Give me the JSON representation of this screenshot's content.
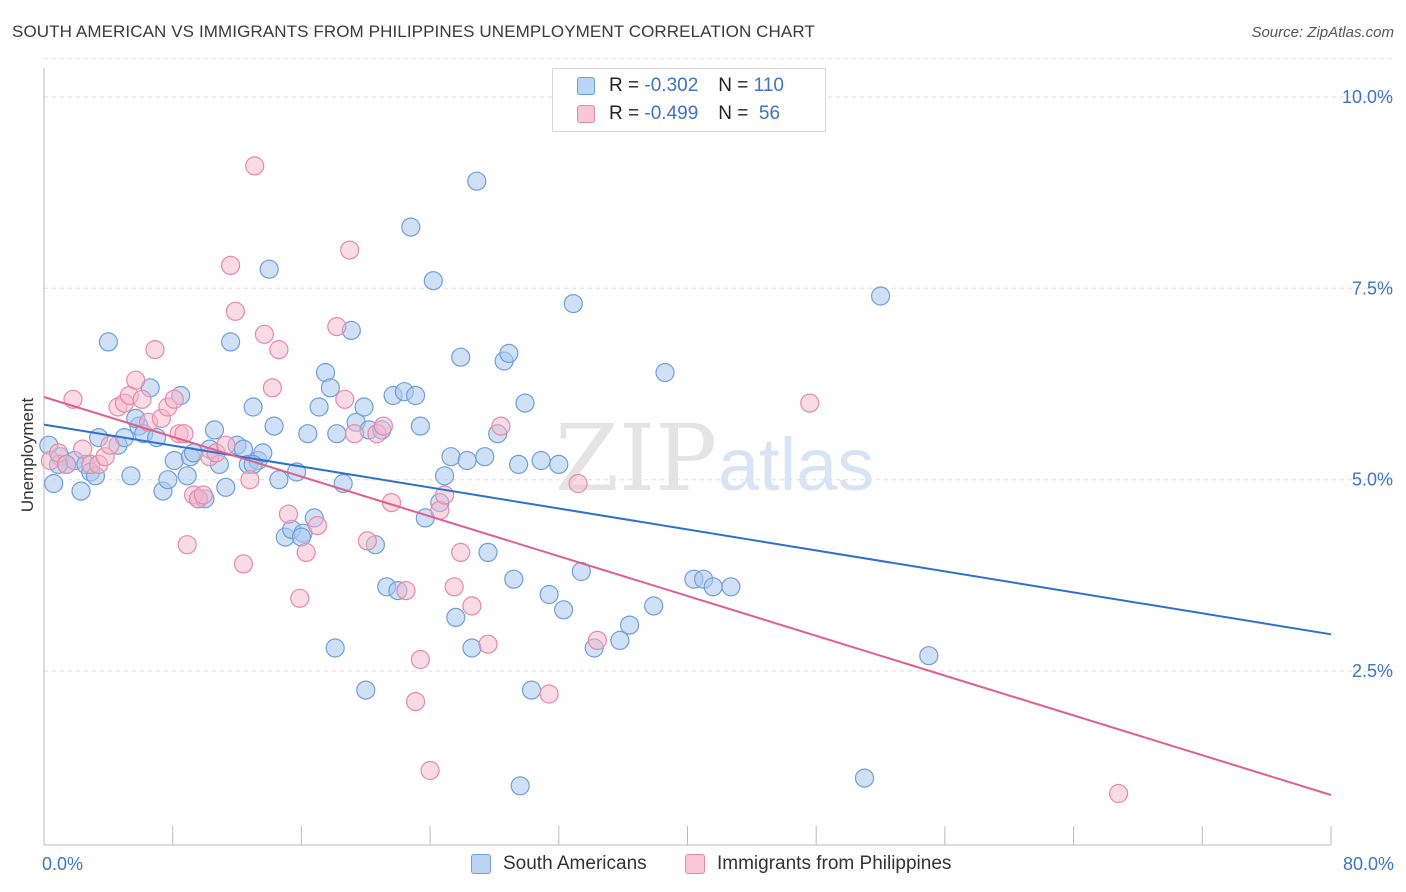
{
  "header": {
    "title": "SOUTH AMERICAN VS IMMIGRANTS FROM PHILIPPINES UNEMPLOYMENT CORRELATION CHART",
    "source": "Source: ZipAtlas.com"
  },
  "watermark": {
    "zip": "ZIP",
    "atlas": "atlas"
  },
  "legend": {
    "rows": [
      {
        "r_label": "R =",
        "r_value": "-0.302",
        "n_label": "N =",
        "n_value": "110"
      },
      {
        "r_label": "R =",
        "r_value": "-0.499",
        "n_label": "N =",
        "n_value": " 56"
      }
    ]
  },
  "colors": {
    "blue_fill": "#a9c8f0",
    "blue_stroke": "#6f9fd8",
    "blue_line": "#2f6fcf",
    "pink_fill": "#f5b6c9",
    "pink_stroke": "#e58aa8",
    "pink_line": "#e0608a",
    "tick_label": "#3d74c4",
    "grid": "#dddddd"
  },
  "chart_data": {
    "type": "scatter",
    "title": "SOUTH AMERICAN VS IMMIGRANTS FROM PHILIPPINES UNEMPLOYMENT CORRELATION CHART",
    "xlabel": "",
    "ylabel": "Unemployment",
    "xlim": [
      0,
      80
    ],
    "ylim": [
      0,
      10.5
    ],
    "x_tick_labels": [
      "0.0%",
      "80.0%"
    ],
    "y_ticks": [
      2.5,
      5.0,
      7.5,
      10.0
    ],
    "y_tick_labels": [
      "2.5%",
      "5.0%",
      "7.5%",
      "10.0%"
    ],
    "grid": "horizontal dashed",
    "legend_position": "top-center",
    "series": [
      {
        "name": "South Americans",
        "color": "#a9c8f0",
        "trend": {
          "x": [
            0,
            80
          ],
          "y": [
            5.72,
            2.98
          ]
        },
        "points": [
          [
            0.3,
            5.45
          ],
          [
            0.6,
            4.95
          ],
          [
            1.0,
            5.3
          ],
          [
            1.4,
            5.2
          ],
          [
            1.9,
            5.25
          ],
          [
            2.3,
            4.85
          ],
          [
            2.6,
            5.2
          ],
          [
            2.9,
            5.1
          ],
          [
            3.2,
            5.05
          ],
          [
            3.4,
            5.55
          ],
          [
            4.0,
            6.8
          ],
          [
            4.6,
            5.45
          ],
          [
            5.0,
            5.55
          ],
          [
            5.4,
            5.05
          ],
          [
            5.9,
            5.7
          ],
          [
            6.2,
            5.6
          ],
          [
            6.6,
            6.2
          ],
          [
            7.0,
            5.55
          ],
          [
            7.4,
            4.85
          ],
          [
            7.7,
            5.0
          ],
          [
            8.1,
            5.25
          ],
          [
            8.5,
            6.1
          ],
          [
            8.9,
            5.05
          ],
          [
            9.1,
            5.3
          ],
          [
            9.6,
            4.75
          ],
          [
            10.0,
            4.75
          ],
          [
            10.3,
            5.4
          ],
          [
            10.6,
            5.65
          ],
          [
            10.9,
            5.2
          ],
          [
            11.3,
            4.9
          ],
          [
            11.6,
            6.8
          ],
          [
            12.0,
            5.45
          ],
          [
            12.4,
            5.4
          ],
          [
            12.7,
            5.2
          ],
          [
            13.0,
            5.95
          ],
          [
            13.3,
            5.25
          ],
          [
            13.6,
            5.35
          ],
          [
            14.0,
            7.75
          ],
          [
            14.3,
            5.7
          ],
          [
            14.6,
            5.0
          ],
          [
            15.0,
            4.25
          ],
          [
            15.4,
            4.35
          ],
          [
            15.7,
            5.1
          ],
          [
            16.1,
            4.3
          ],
          [
            16.4,
            5.6
          ],
          [
            16.8,
            4.5
          ],
          [
            17.1,
            5.95
          ],
          [
            17.5,
            6.4
          ],
          [
            17.8,
            6.2
          ],
          [
            18.2,
            5.6
          ],
          [
            18.6,
            4.95
          ],
          [
            19.1,
            6.95
          ],
          [
            19.4,
            5.75
          ],
          [
            19.9,
            5.95
          ],
          [
            20.2,
            5.65
          ],
          [
            20.6,
            4.15
          ],
          [
            21.0,
            5.65
          ],
          [
            21.3,
            3.6
          ],
          [
            21.7,
            6.1
          ],
          [
            22.0,
            3.55
          ],
          [
            22.4,
            6.15
          ],
          [
            22.8,
            8.3
          ],
          [
            23.1,
            6.1
          ],
          [
            23.4,
            5.7
          ],
          [
            23.7,
            4.5
          ],
          [
            24.2,
            7.6
          ],
          [
            24.6,
            4.7
          ],
          [
            24.9,
            5.05
          ],
          [
            25.3,
            5.3
          ],
          [
            25.6,
            3.2
          ],
          [
            25.9,
            6.6
          ],
          [
            26.3,
            5.25
          ],
          [
            26.6,
            2.8
          ],
          [
            26.9,
            8.9
          ],
          [
            27.4,
            5.3
          ],
          [
            27.6,
            4.05
          ],
          [
            28.2,
            5.6
          ],
          [
            28.6,
            6.55
          ],
          [
            28.9,
            6.65
          ],
          [
            29.2,
            3.7
          ],
          [
            29.5,
            5.2
          ],
          [
            29.9,
            6.0
          ],
          [
            30.3,
            2.25
          ],
          [
            30.9,
            5.25
          ],
          [
            31.4,
            3.5
          ],
          [
            32.0,
            5.2
          ],
          [
            32.3,
            3.3
          ],
          [
            32.9,
            7.3
          ],
          [
            33.4,
            3.8
          ],
          [
            34.2,
            2.8
          ],
          [
            35.8,
            2.9
          ],
          [
            36.4,
            3.1
          ],
          [
            37.9,
            3.35
          ],
          [
            38.6,
            6.4
          ],
          [
            40.4,
            3.7
          ],
          [
            41.0,
            3.7
          ],
          [
            41.6,
            3.6
          ],
          [
            42.7,
            3.6
          ],
          [
            55.0,
            2.7
          ],
          [
            52.0,
            7.4
          ],
          [
            51.0,
            1.1
          ],
          [
            29.6,
            1.0
          ],
          [
            18.1,
            2.8
          ],
          [
            20.0,
            2.25
          ],
          [
            13.0,
            5.2
          ],
          [
            9.3,
            5.35
          ],
          [
            5.7,
            5.8
          ],
          [
            0.9,
            5.2
          ],
          [
            16.0,
            4.25
          ]
        ]
      },
      {
        "name": "Immigrants from Philippines",
        "color": "#f5b6c9",
        "trend": {
          "x": [
            0,
            80
          ],
          "y": [
            6.08,
            0.88
          ]
        },
        "points": [
          [
            0.4,
            5.25
          ],
          [
            0.9,
            5.35
          ],
          [
            1.4,
            5.2
          ],
          [
            1.8,
            6.05
          ],
          [
            2.4,
            5.4
          ],
          [
            2.9,
            5.2
          ],
          [
            3.4,
            5.2
          ],
          [
            3.8,
            5.3
          ],
          [
            4.1,
            5.45
          ],
          [
            4.6,
            5.95
          ],
          [
            5.0,
            6.0
          ],
          [
            5.3,
            6.1
          ],
          [
            5.7,
            6.3
          ],
          [
            6.1,
            6.05
          ],
          [
            6.5,
            5.75
          ],
          [
            6.9,
            6.7
          ],
          [
            7.3,
            5.8
          ],
          [
            7.7,
            5.95
          ],
          [
            8.1,
            6.05
          ],
          [
            8.4,
            5.6
          ],
          [
            8.7,
            5.6
          ],
          [
            8.9,
            4.15
          ],
          [
            9.3,
            4.8
          ],
          [
            9.6,
            4.75
          ],
          [
            9.9,
            4.8
          ],
          [
            10.3,
            5.3
          ],
          [
            10.7,
            5.35
          ],
          [
            11.3,
            5.45
          ],
          [
            11.6,
            7.8
          ],
          [
            11.9,
            7.2
          ],
          [
            12.4,
            3.9
          ],
          [
            12.8,
            5.0
          ],
          [
            13.1,
            9.1
          ],
          [
            13.7,
            6.9
          ],
          [
            14.2,
            6.2
          ],
          [
            14.6,
            6.7
          ],
          [
            15.2,
            4.55
          ],
          [
            15.9,
            3.45
          ],
          [
            16.3,
            4.05
          ],
          [
            17.0,
            4.4
          ],
          [
            18.2,
            7.0
          ],
          [
            18.7,
            6.05
          ],
          [
            19.0,
            8.0
          ],
          [
            19.3,
            5.6
          ],
          [
            20.1,
            4.2
          ],
          [
            20.7,
            5.6
          ],
          [
            21.1,
            5.7
          ],
          [
            21.6,
            4.7
          ],
          [
            22.5,
            3.55
          ],
          [
            23.1,
            2.1
          ],
          [
            23.4,
            2.65
          ],
          [
            24.0,
            1.2
          ],
          [
            24.6,
            4.6
          ],
          [
            24.9,
            4.8
          ],
          [
            25.5,
            3.6
          ],
          [
            25.9,
            4.05
          ]
        ],
        "extra_points": [
          [
            26.6,
            3.35
          ],
          [
            27.6,
            2.85
          ],
          [
            28.4,
            5.7
          ],
          [
            31.4,
            2.2
          ],
          [
            33.2,
            4.95
          ],
          [
            34.4,
            2.9
          ],
          [
            47.6,
            6.0
          ],
          [
            66.8,
            0.9
          ]
        ]
      }
    ]
  },
  "bottom_legend": {
    "items": [
      {
        "label": "South Americans"
      },
      {
        "label": "Immigrants from Philippines"
      }
    ]
  }
}
